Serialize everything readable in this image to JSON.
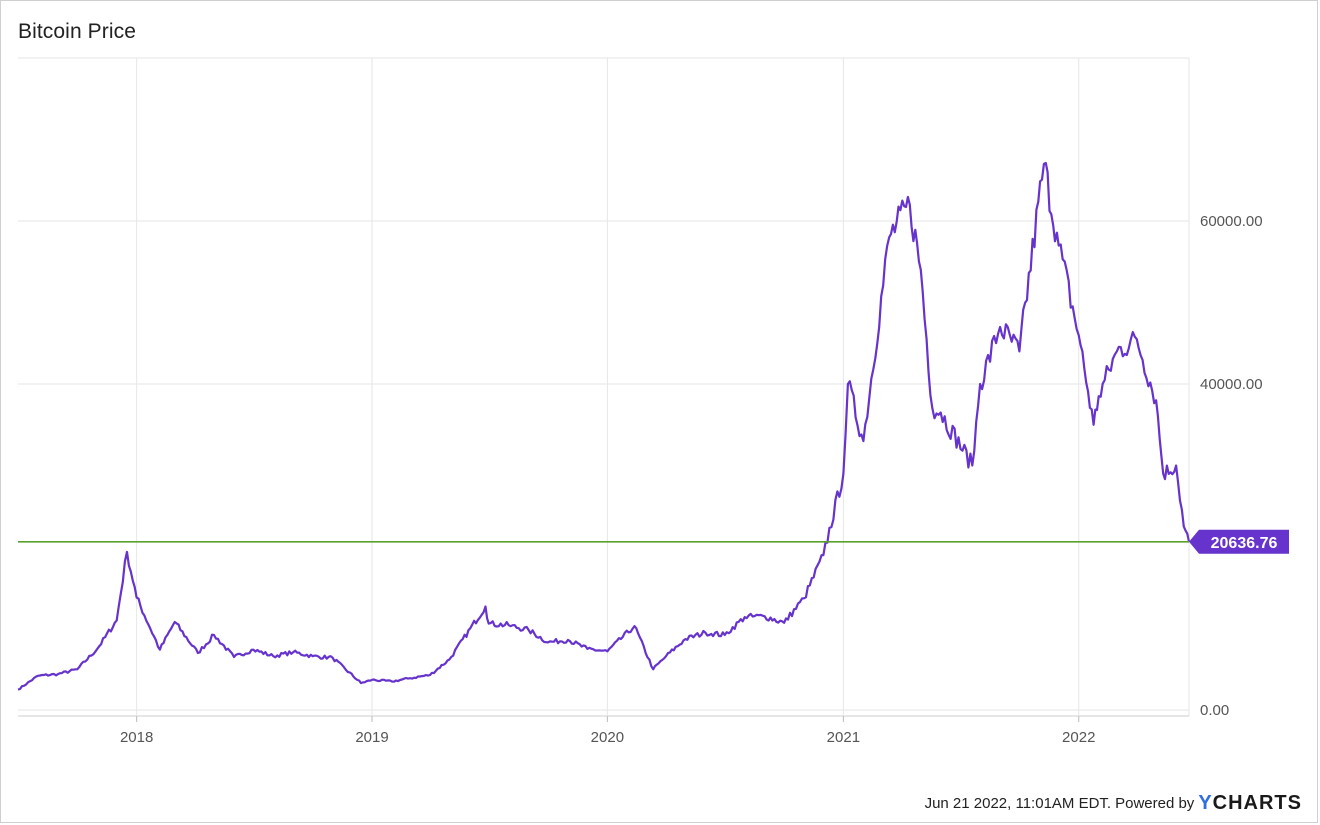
{
  "title": "Bitcoin Price",
  "footer": {
    "timestamp": "Jun 21 2022, 11:01AM EDT.",
    "powered_by": "Powered by",
    "brand_y": "Y",
    "brand_rest": "CHARTS"
  },
  "colors": {
    "series": "#6633cc",
    "reference_line": "#5aa02c",
    "grid": "#e6e6e6",
    "tick_text": "#555555"
  },
  "chart_data": {
    "type": "line",
    "title": "Bitcoin Price",
    "xlabel": "",
    "ylabel": "",
    "x_ticks": [
      "2018",
      "2019",
      "2020",
      "2021",
      "2022"
    ],
    "y_ticks": [
      "0.00",
      "40000.00",
      "60000.00"
    ],
    "ylim": [
      0,
      80000
    ],
    "grid": true,
    "y_axis_side": "right",
    "last_value_label": "20636.76",
    "reference_line_value": 20636.76,
    "series": [
      {
        "name": "",
        "x": [
          "2017-07-01",
          "2017-08-01",
          "2017-09-01",
          "2017-10-01",
          "2017-11-01",
          "2017-12-01",
          "2017-12-17",
          "2018-01-01",
          "2018-02-06",
          "2018-03-01",
          "2018-04-06",
          "2018-05-01",
          "2018-06-01",
          "2018-07-01",
          "2018-08-01",
          "2018-09-01",
          "2018-10-01",
          "2018-11-01",
          "2018-12-15",
          "2019-01-01",
          "2019-02-01",
          "2019-03-01",
          "2019-04-01",
          "2019-05-01",
          "2019-06-26",
          "2019-07-01",
          "2019-08-01",
          "2019-09-01",
          "2019-10-01",
          "2019-11-01",
          "2019-12-01",
          "2020-01-01",
          "2020-02-12",
          "2020-03-12",
          "2020-04-01",
          "2020-05-01",
          "2020-06-01",
          "2020-07-01",
          "2020-08-01",
          "2020-09-01",
          "2020-10-01",
          "2020-11-01",
          "2020-12-01",
          "2021-01-01",
          "2021-01-08",
          "2021-02-01",
          "2021-03-13",
          "2021-04-14",
          "2021-05-01",
          "2021-05-19",
          "2021-06-01",
          "2021-07-20",
          "2021-08-01",
          "2021-09-01",
          "2021-10-01",
          "2021-11-08",
          "2021-12-01",
          "2022-01-01",
          "2022-01-24",
          "2022-02-01",
          "2022-03-01",
          "2022-04-01",
          "2022-05-01",
          "2022-05-12",
          "2022-06-01",
          "2022-06-13",
          "2022-06-21"
        ],
        "values": [
          2500,
          4200,
          4400,
          5000,
          7500,
          11000,
          19400,
          13800,
          7400,
          10800,
          7000,
          9200,
          6500,
          7400,
          6600,
          7100,
          6600,
          6400,
          3300,
          3700,
          3500,
          3900,
          4300,
          6200,
          12700,
          10600,
          10400,
          9800,
          8300,
          8600,
          7500,
          7200,
          10300,
          5000,
          6600,
          8700,
          9500,
          9200,
          11400,
          11500,
          10700,
          13700,
          19000,
          29000,
          40000,
          33000,
          58000,
          62000,
          54000,
          37000,
          36500,
          30000,
          40000,
          47000,
          44000,
          67000,
          57000,
          46000,
          35000,
          38500,
          44000,
          45500,
          38000,
          29000,
          30000,
          22500,
          20636.76
        ]
      }
    ]
  }
}
